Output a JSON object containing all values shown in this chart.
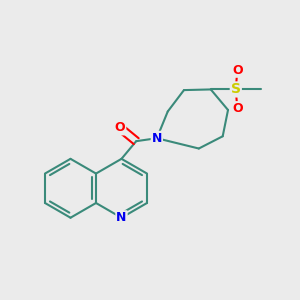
{
  "background_color": "#ebebeb",
  "bond_color": "#3a8a7a",
  "atom_colors": {
    "N": "#0000ee",
    "O": "#ff0000",
    "S": "#cccc00",
    "C": "#3a8a7a"
  },
  "bond_width": 1.5,
  "figsize": [
    3.0,
    3.0
  ],
  "dpi": 100
}
